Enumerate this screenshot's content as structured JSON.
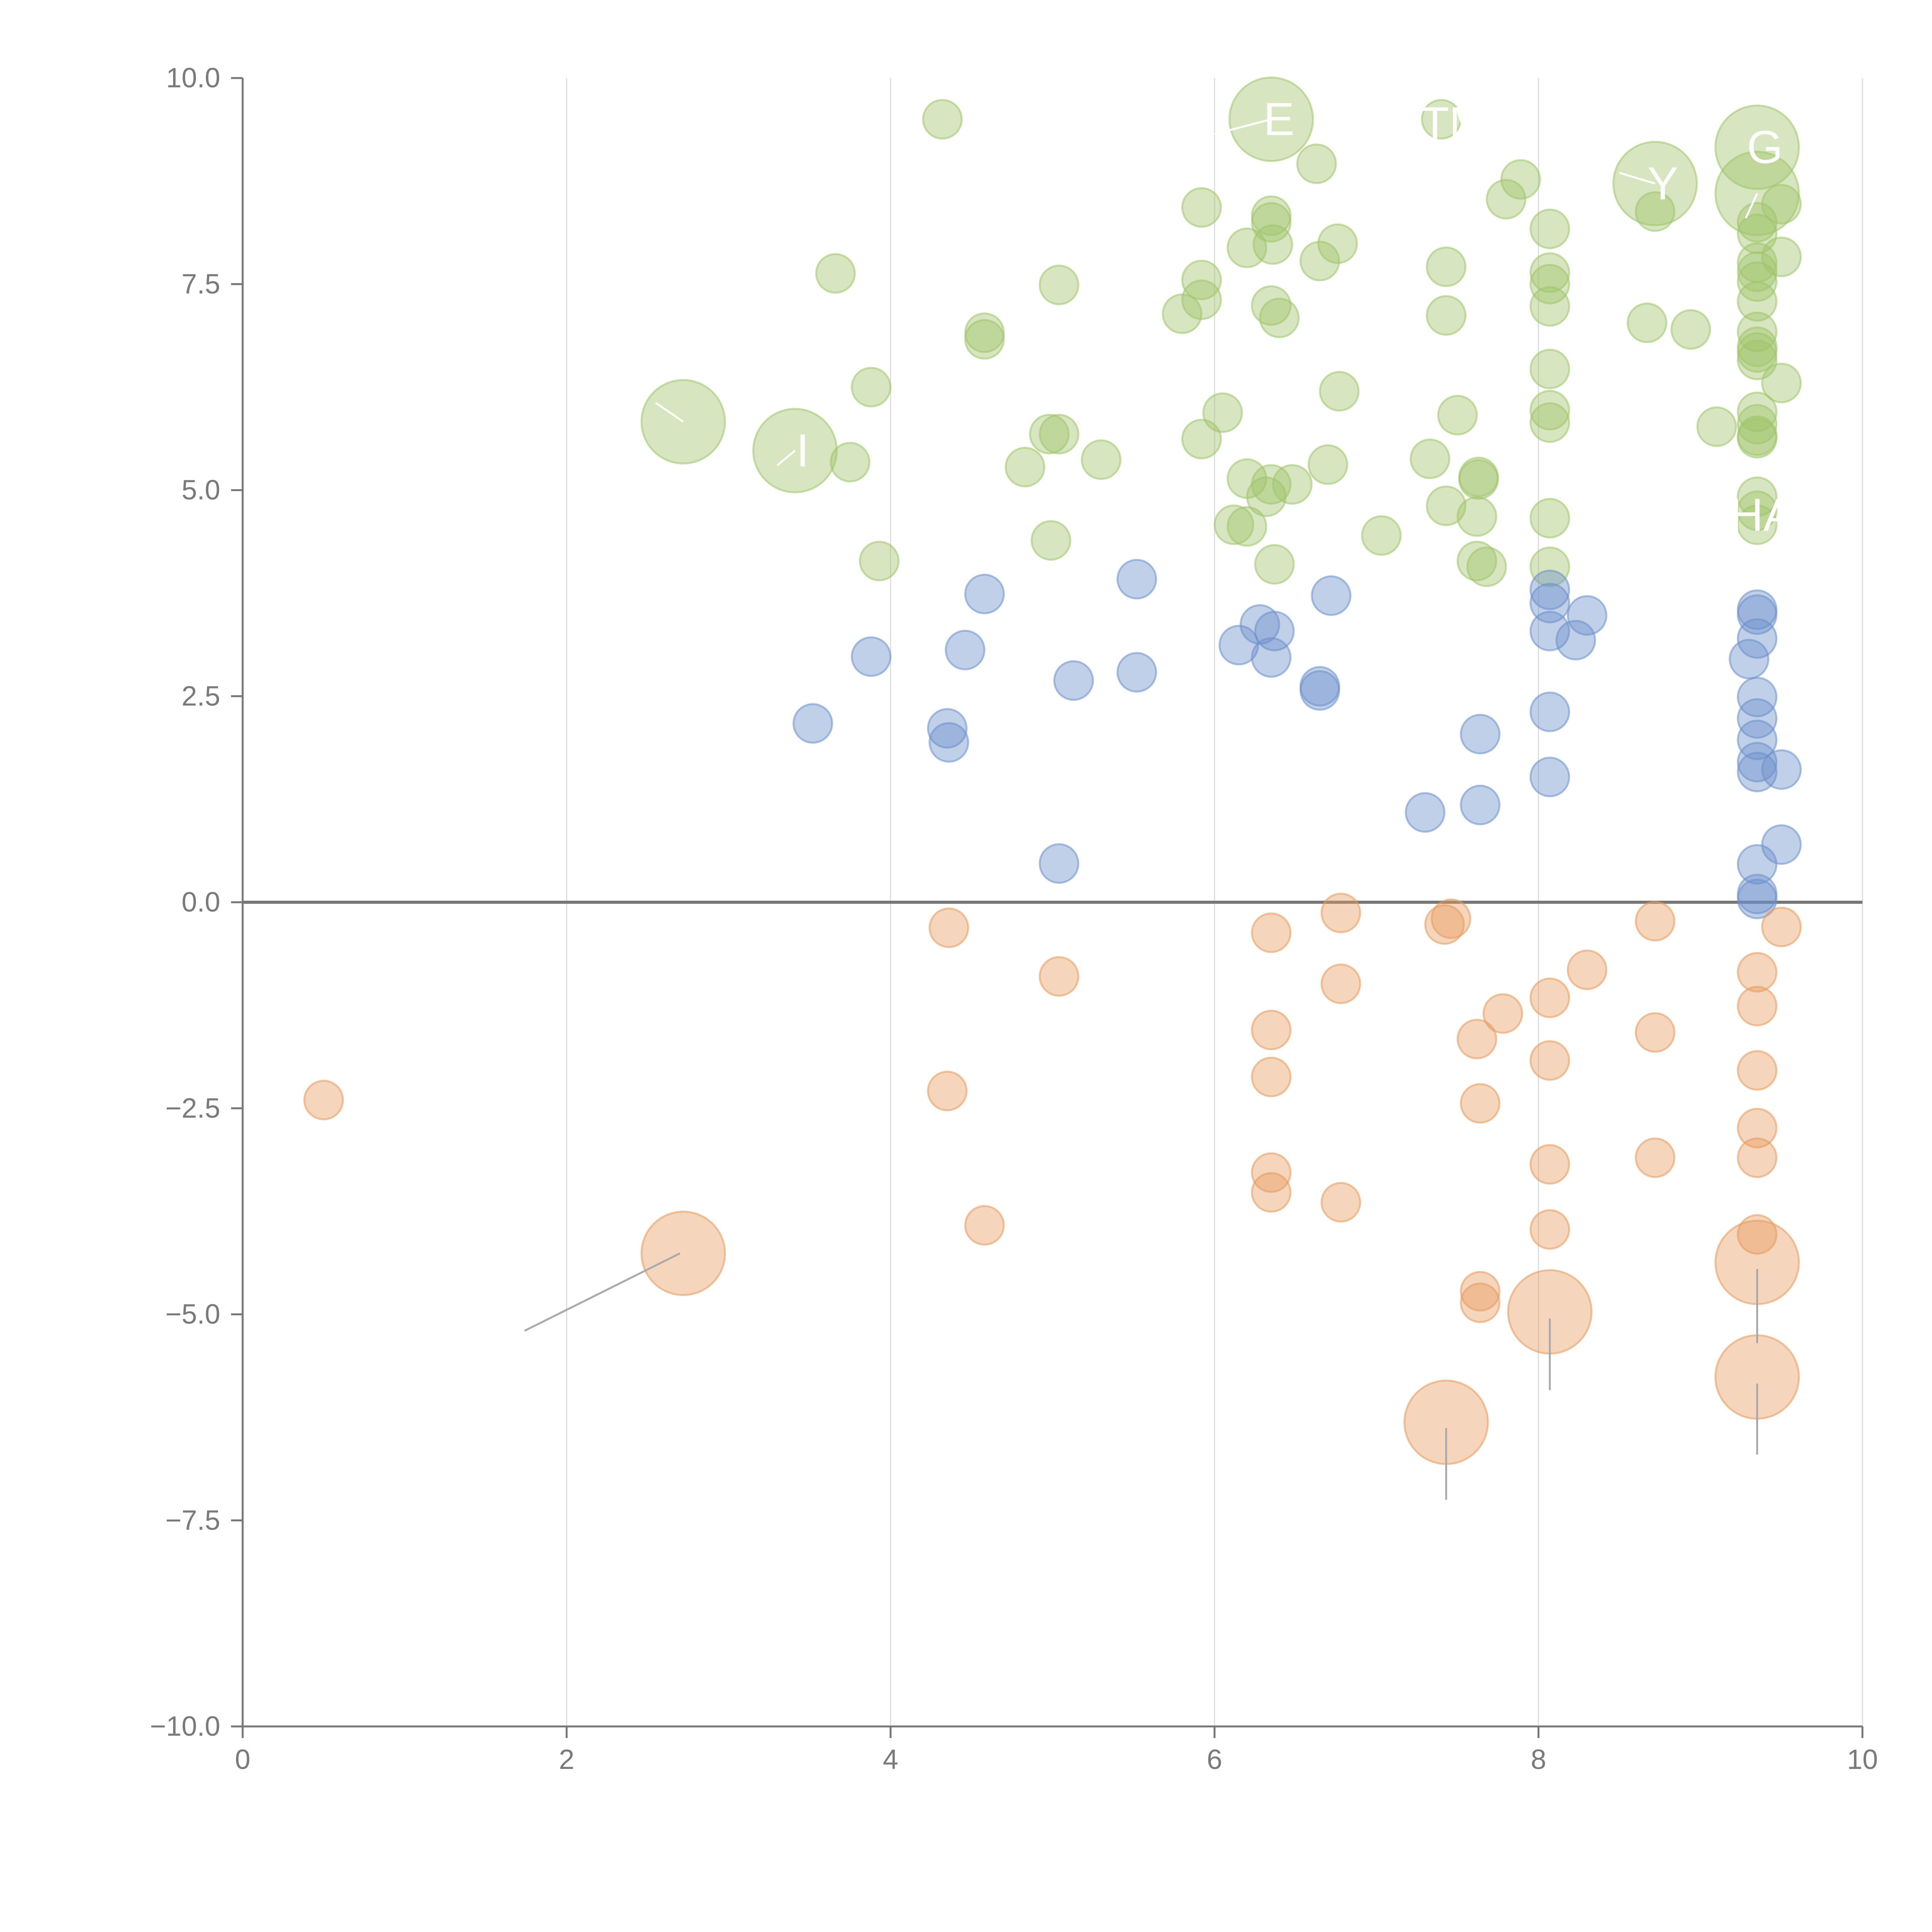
{
  "chart_data": {
    "type": "scatter",
    "title": "",
    "xlabel": "",
    "ylabel": "",
    "xlim": [
      0,
      10
    ],
    "ylim": [
      -10,
      10
    ],
    "grid": "vertical",
    "legend": "none",
    "x_ticks": [
      {
        "value": 0,
        "label": "0"
      },
      {
        "value": 2,
        "label": "2"
      },
      {
        "value": 4,
        "label": "4"
      },
      {
        "value": 6,
        "label": "6"
      },
      {
        "value": 8,
        "label": "8"
      },
      {
        "value": 10,
        "label": "10"
      }
    ],
    "y_ticks": [
      {
        "value": 10,
        "label": "10.0"
      },
      {
        "value": 7.5,
        "label": "7.5"
      },
      {
        "value": 5,
        "label": "5.0"
      },
      {
        "value": 2.5,
        "label": "2.5"
      },
      {
        "value": 0,
        "label": "0.0"
      },
      {
        "value": -2.5,
        "label": "−2.5"
      },
      {
        "value": -5,
        "label": "−5.0"
      },
      {
        "value": -7.5,
        "label": "−7.5"
      },
      {
        "value": -10,
        "label": "−10.0"
      }
    ],
    "series": [
      {
        "name": "green",
        "color": "#9fc46a",
        "points": [
          [
            4.32,
            9.5
          ],
          [
            6.63,
            8.96
          ],
          [
            7.4,
            9.5
          ],
          [
            7.89,
            8.77
          ],
          [
            7.8,
            8.53
          ],
          [
            5.92,
            8.43
          ],
          [
            6.35,
            8.33
          ],
          [
            6.35,
            8.25
          ],
          [
            6.36,
            7.98
          ],
          [
            6.2,
            7.94
          ],
          [
            6.76,
            7.99
          ],
          [
            6.65,
            7.78
          ],
          [
            7.43,
            7.71
          ],
          [
            8.07,
            8.17
          ],
          [
            8.07,
            7.64
          ],
          [
            8.07,
            7.5
          ],
          [
            8.07,
            7.23
          ],
          [
            8.72,
            8.38
          ],
          [
            3.66,
            7.63
          ],
          [
            5.04,
            7.49
          ],
          [
            5.92,
            7.55
          ],
          [
            5.92,
            7.31
          ],
          [
            5.8,
            7.14
          ],
          [
            6.35,
            7.24
          ],
          [
            6.4,
            7.09
          ],
          [
            7.43,
            7.12
          ],
          [
            8.67,
            7.03
          ],
          [
            8.94,
            6.95
          ],
          [
            4.58,
            6.91
          ],
          [
            4.58,
            6.83
          ],
          [
            3.88,
            6.25
          ],
          [
            6.05,
            5.94
          ],
          [
            6.77,
            6.2
          ],
          [
            7.5,
            5.91
          ],
          [
            8.07,
            6.47
          ],
          [
            8.07,
            5.97
          ],
          [
            8.07,
            5.82
          ],
          [
            9.1,
            5.77
          ],
          [
            4.98,
            5.68
          ],
          [
            5.04,
            5.68
          ],
          [
            3.75,
            5.34
          ],
          [
            4.83,
            5.28
          ],
          [
            5.3,
            5.37
          ],
          [
            5.92,
            5.62
          ],
          [
            6.2,
            5.14
          ],
          [
            6.35,
            5.07
          ],
          [
            6.48,
            5.07
          ],
          [
            6.7,
            5.31
          ],
          [
            7.33,
            5.38
          ],
          [
            7.63,
            5.16
          ],
          [
            7.63,
            5.13
          ],
          [
            6.32,
            4.92
          ],
          [
            6.12,
            4.58
          ],
          [
            6.2,
            4.56
          ],
          [
            7.43,
            4.81
          ],
          [
            7.62,
            4.68
          ],
          [
            7.03,
            4.45
          ],
          [
            4.99,
            4.39
          ],
          [
            3.93,
            4.14
          ],
          [
            6.37,
            4.1
          ],
          [
            7.62,
            4.14
          ],
          [
            7.68,
            4.07
          ],
          [
            8.07,
            4.66
          ],
          [
            8.07,
            4.07
          ],
          [
            9.35,
            4.92
          ],
          [
            9.35,
            4.75
          ],
          [
            9.35,
            4.58
          ],
          [
            9.35,
            5.95
          ],
          [
            9.35,
            5.8
          ],
          [
            9.35,
            5.66
          ],
          [
            9.35,
            5.63
          ],
          [
            9.5,
            6.3
          ],
          [
            9.35,
            6.92
          ],
          [
            9.35,
            6.74
          ],
          [
            9.35,
            6.67
          ],
          [
            9.35,
            6.58
          ],
          [
            9.35,
            7.76
          ],
          [
            9.35,
            7.65
          ],
          [
            9.35,
            7.53
          ],
          [
            9.35,
            7.29
          ],
          [
            9.5,
            7.83
          ],
          [
            9.35,
            8.11
          ],
          [
            9.5,
            8.47
          ],
          [
            9.35,
            8.25
          ]
        ]
      },
      {
        "name": "blue",
        "color": "#6b8fcb",
        "points": [
          [
            3.52,
            2.17
          ],
          [
            3.88,
            2.98
          ],
          [
            4.35,
            2.11
          ],
          [
            4.36,
            1.94
          ],
          [
            4.46,
            3.06
          ],
          [
            4.58,
            3.74
          ],
          [
            5.13,
            2.69
          ],
          [
            5.04,
            0.47
          ],
          [
            5.52,
            3.92
          ],
          [
            5.52,
            2.79
          ],
          [
            6.15,
            3.12
          ],
          [
            6.28,
            3.37
          ],
          [
            6.37,
            3.29
          ],
          [
            6.35,
            2.97
          ],
          [
            6.65,
            2.62
          ],
          [
            6.65,
            2.57
          ],
          [
            6.72,
            3.72
          ],
          [
            7.3,
            1.09
          ],
          [
            7.64,
            2.04
          ],
          [
            7.64,
            1.18
          ],
          [
            8.07,
            3.79
          ],
          [
            8.07,
            3.63
          ],
          [
            8.07,
            3.29
          ],
          [
            8.07,
            2.31
          ],
          [
            8.07,
            1.52
          ],
          [
            8.23,
            3.18
          ],
          [
            8.3,
            3.48
          ],
          [
            9.35,
            3.55
          ],
          [
            9.35,
            3.49
          ],
          [
            9.35,
            3.2
          ],
          [
            9.3,
            2.95
          ],
          [
            9.35,
            2.49
          ],
          [
            9.35,
            2.23
          ],
          [
            9.35,
            1.97
          ],
          [
            9.35,
            1.7
          ],
          [
            9.35,
            1.58
          ],
          [
            9.5,
            1.61
          ],
          [
            9.5,
            0.7
          ],
          [
            9.35,
            0.46
          ],
          [
            9.35,
            0.1
          ],
          [
            9.35,
            0.04
          ]
        ]
      },
      {
        "name": "orange",
        "color": "#e69b5c",
        "points": [
          [
            0.5,
            -2.4
          ],
          [
            4.36,
            -0.31
          ],
          [
            4.35,
            -2.29
          ],
          [
            4.58,
            -3.92
          ],
          [
            5.04,
            -0.9
          ],
          [
            6.35,
            -0.37
          ],
          [
            6.35,
            -1.55
          ],
          [
            6.35,
            -2.12
          ],
          [
            6.35,
            -3.28
          ],
          [
            6.35,
            -3.52
          ],
          [
            6.78,
            -0.13
          ],
          [
            6.78,
            -0.99
          ],
          [
            6.78,
            -3.64
          ],
          [
            7.42,
            -0.27
          ],
          [
            7.46,
            -0.2
          ],
          [
            7.62,
            -1.66
          ],
          [
            7.64,
            -2.44
          ],
          [
            7.64,
            -4.72
          ],
          [
            7.64,
            -4.86
          ],
          [
            7.78,
            -1.35
          ],
          [
            8.07,
            -1.16
          ],
          [
            8.07,
            -1.92
          ],
          [
            8.07,
            -3.18
          ],
          [
            8.07,
            -3.97
          ],
          [
            8.3,
            -0.82
          ],
          [
            8.72,
            -0.23
          ],
          [
            8.72,
            -1.58
          ],
          [
            8.72,
            -3.1
          ],
          [
            9.35,
            -0.85
          ],
          [
            9.35,
            -1.26
          ],
          [
            9.35,
            -2.04
          ],
          [
            9.35,
            -2.74
          ],
          [
            9.35,
            -3.1
          ],
          [
            9.35,
            -4.03
          ],
          [
            9.5,
            -0.3
          ]
        ]
      }
    ],
    "bubbles": [
      {
        "series": "green",
        "x": 2.72,
        "y": 5.83,
        "label": ""
      },
      {
        "series": "green",
        "x": 3.41,
        "y": 5.48,
        "label": "I"
      },
      {
        "series": "green",
        "x": 6.35,
        "y": 9.5,
        "label": "E"
      },
      {
        "series": "green",
        "x": 8.72,
        "y": 8.72,
        "label": "Y"
      },
      {
        "series": "green",
        "x": 9.35,
        "y": 9.16,
        "label": "G"
      },
      {
        "series": "green",
        "x": 9.35,
        "y": 8.6,
        "label": ""
      },
      {
        "series": "orange",
        "x": 2.72,
        "y": -4.26,
        "label": ""
      },
      {
        "series": "orange",
        "x": 7.43,
        "y": -6.31,
        "label": ""
      },
      {
        "series": "orange",
        "x": 8.07,
        "y": -4.97,
        "label": ""
      },
      {
        "series": "orange",
        "x": 9.35,
        "y": -4.37,
        "label": ""
      },
      {
        "series": "orange",
        "x": 9.35,
        "y": -5.76,
        "label": ""
      }
    ],
    "text_labels": [
      {
        "text": "TM",
        "x": 7.48,
        "y": 9.45
      },
      {
        "text": "HA",
        "x": 9.38,
        "y": 4.7
      }
    ],
    "leader_lines": [
      {
        "from": [
          2.72,
          5.83
        ],
        "to": [
          2.55,
          6.06
        ]
      },
      {
        "from": [
          3.41,
          5.48
        ],
        "to": [
          3.3,
          5.3
        ]
      },
      {
        "from": [
          6.35,
          9.5
        ],
        "to": [
          6.0,
          9.32
        ]
      },
      {
        "from": [
          8.72,
          8.72
        ],
        "to": [
          8.5,
          8.85
        ]
      },
      {
        "from": [
          9.35,
          8.6
        ],
        "to": [
          9.28,
          8.3
        ]
      },
      {
        "from": [
          2.7,
          -4.26
        ],
        "to": [
          1.74,
          -5.2
        ]
      },
      {
        "from": [
          7.43,
          -6.38
        ],
        "to": [
          7.43,
          -7.25
        ]
      },
      {
        "from": [
          8.07,
          -5.05
        ],
        "to": [
          8.07,
          -5.92
        ]
      },
      {
        "from": [
          9.35,
          -4.45
        ],
        "to": [
          9.35,
          -5.35
        ]
      },
      {
        "from": [
          9.35,
          -5.84
        ],
        "to": [
          9.35,
          -6.7
        ]
      }
    ]
  }
}
